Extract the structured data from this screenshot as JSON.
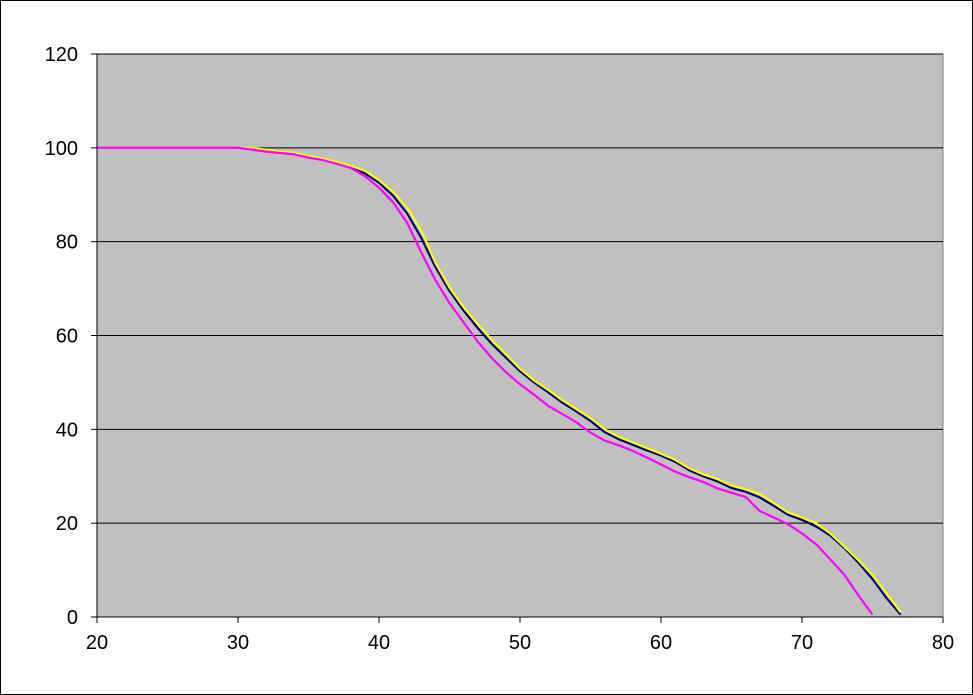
{
  "chart_data": {
    "type": "line",
    "title": "",
    "xlabel": "",
    "ylabel": "",
    "xlim": [
      20,
      80
    ],
    "ylim": [
      0,
      120
    ],
    "x_ticks": [
      "20",
      "30",
      "40",
      "50",
      "60",
      "70",
      "80"
    ],
    "y_ticks": [
      "0",
      "20",
      "40",
      "60",
      "80",
      "100",
      "120"
    ],
    "x_tick_values": [
      20,
      30,
      40,
      50,
      60,
      70,
      80
    ],
    "y_tick_values": [
      0,
      20,
      40,
      60,
      80,
      100,
      120
    ],
    "grid": "horizontal",
    "legend": "none",
    "plot_background": "#c0c0c0",
    "series": [
      {
        "color": "#000080",
        "x": [
          20,
          25,
          30,
          31,
          32,
          33,
          34,
          35,
          36,
          37,
          38,
          39,
          40,
          41,
          42,
          43,
          44,
          45,
          46,
          47,
          48,
          49,
          50,
          51,
          52,
          53,
          54,
          55,
          56,
          57,
          58,
          59,
          60,
          61,
          62,
          63,
          64,
          65,
          66,
          67,
          68,
          69,
          70,
          71,
          72,
          73,
          74,
          75,
          76,
          77
        ],
        "y": [
          100,
          100,
          100,
          99.8,
          99.5,
          99.2,
          98.8,
          98.2,
          97.5,
          96.8,
          95.9,
          94.6,
          92.6,
          89.8,
          86.0,
          80.8,
          74.6,
          69.5,
          65.3,
          61.6,
          58.2,
          55.3,
          52.4,
          50.0,
          47.9,
          45.7,
          43.8,
          41.8,
          39.4,
          37.9,
          36.7,
          35.5,
          34.4,
          33.1,
          31.3,
          30.0,
          28.9,
          27.5,
          26.7,
          25.5,
          23.7,
          21.8,
          20.7,
          19.3,
          17.4,
          14.7,
          11.6,
          8.1,
          4.0,
          0.5
        ]
      },
      {
        "color": "#ffff00",
        "x": [
          20,
          25,
          30,
          31,
          32,
          33,
          34,
          35,
          36,
          37,
          38,
          39,
          40,
          41,
          42,
          43,
          44,
          45,
          46,
          47,
          48,
          49,
          50,
          51,
          52,
          53,
          54,
          55,
          56,
          57,
          58,
          59,
          60,
          61,
          62,
          63,
          64,
          65,
          66,
          67,
          68,
          69,
          70,
          71,
          72,
          73,
          74,
          75,
          76,
          77
        ],
        "y": [
          100,
          100,
          100,
          100,
          99.6,
          99.2,
          98.9,
          98.3,
          97.7,
          97.0,
          96.2,
          95.1,
          93.1,
          90.6,
          87.2,
          82.3,
          75.5,
          70.2,
          66.0,
          62.4,
          59.0,
          56.0,
          52.9,
          50.4,
          48.4,
          46.2,
          44.3,
          42.4,
          40.0,
          38.4,
          37.2,
          36.0,
          34.8,
          33.5,
          31.7,
          30.4,
          29.4,
          28.0,
          27.2,
          26.2,
          24.3,
          22.3,
          21.2,
          20.0,
          17.8,
          15.0,
          12.1,
          8.9,
          5.0,
          1.0
        ]
      },
      {
        "color": "#ff00ff",
        "x": [
          20,
          25,
          30,
          31,
          32,
          33,
          34,
          35,
          36,
          37,
          38,
          39,
          40,
          41,
          42,
          43,
          44,
          45,
          46,
          47,
          48,
          49,
          50,
          51,
          52,
          53,
          54,
          55,
          56,
          57,
          58,
          59,
          60,
          61,
          62,
          63,
          64,
          65,
          66,
          67,
          68,
          69,
          70,
          71,
          72,
          73,
          74,
          75
        ],
        "y": [
          100,
          100,
          100,
          99.6,
          99.2,
          98.9,
          98.6,
          97.9,
          97.4,
          96.6,
          95.7,
          94.0,
          91.5,
          88.4,
          84.0,
          77.7,
          71.8,
          66.9,
          62.8,
          58.7,
          55.2,
          52.2,
          49.6,
          47.4,
          45.0,
          43.3,
          41.5,
          39.3,
          37.6,
          36.6,
          35.4,
          34.0,
          32.5,
          31.0,
          29.8,
          28.8,
          27.4,
          26.5,
          25.6,
          22.6,
          21.2,
          19.8,
          17.8,
          15.5,
          12.3,
          9.0,
          4.6,
          0.5
        ]
      }
    ]
  }
}
